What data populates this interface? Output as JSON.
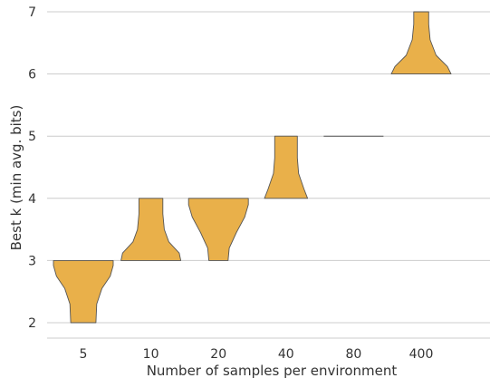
{
  "chart_data": {
    "type": "violin",
    "title": "",
    "xlabel": "Number of samples per environment",
    "ylabel": "Best k (min avg. bits)",
    "categories": [
      "5",
      "10",
      "20",
      "40",
      "80",
      "400"
    ],
    "ylim": [
      1.8,
      7.0
    ],
    "yticks": [
      2,
      3,
      4,
      5,
      6,
      7
    ],
    "grid": "horizontal",
    "color": "#e9b04a",
    "edge_color": "#555555",
    "violins": [
      {
        "category": "5",
        "min": 2,
        "max": 3,
        "profile": [
          [
            2.0,
            0.42
          ],
          [
            2.3,
            0.45
          ],
          [
            2.55,
            0.62
          ],
          [
            2.75,
            0.9
          ],
          [
            2.92,
            1.0
          ],
          [
            3.0,
            1.0
          ]
        ]
      },
      {
        "category": "10",
        "min": 3,
        "max": 4,
        "profile": [
          [
            3.0,
            1.0
          ],
          [
            3.12,
            0.95
          ],
          [
            3.3,
            0.6
          ],
          [
            3.5,
            0.45
          ],
          [
            3.75,
            0.4
          ],
          [
            4.0,
            0.4
          ]
        ]
      },
      {
        "category": "20",
        "min": 3,
        "max": 4,
        "profile": [
          [
            3.0,
            0.32
          ],
          [
            3.2,
            0.36
          ],
          [
            3.45,
            0.6
          ],
          [
            3.7,
            0.88
          ],
          [
            3.9,
            1.0
          ],
          [
            4.0,
            1.0
          ]
        ]
      },
      {
        "category": "40",
        "min": 4,
        "max": 5,
        "profile": [
          [
            4.0,
            0.72
          ],
          [
            4.15,
            0.6
          ],
          [
            4.4,
            0.42
          ],
          [
            4.65,
            0.38
          ],
          [
            4.85,
            0.38
          ],
          [
            5.0,
            0.38
          ]
        ]
      },
      {
        "category": "80",
        "min": 5,
        "max": 5,
        "profile": [
          [
            5.0,
            1.0
          ]
        ]
      },
      {
        "category": "400",
        "min": 6,
        "max": 7,
        "profile": [
          [
            6.0,
            1.0
          ],
          [
            6.12,
            0.88
          ],
          [
            6.3,
            0.5
          ],
          [
            6.55,
            0.3
          ],
          [
            6.8,
            0.25
          ],
          [
            7.0,
            0.25
          ]
        ]
      }
    ]
  }
}
